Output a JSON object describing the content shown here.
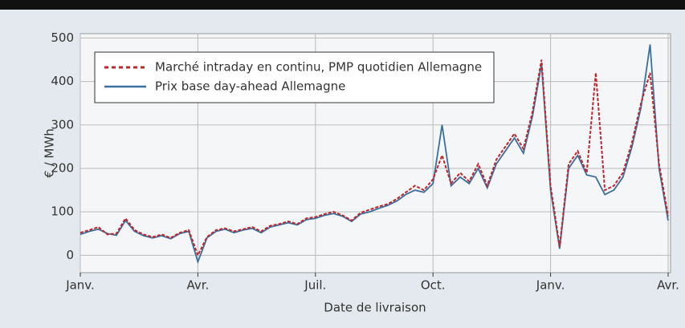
{
  "chart_data": {
    "type": "line",
    "xlabel": "Date de livraison",
    "ylabel": "€ / MWh",
    "categories": [
      "Janv.",
      null,
      null,
      null,
      null,
      null,
      null,
      null,
      null,
      null,
      null,
      null,
      null,
      "Avr.",
      null,
      null,
      null,
      null,
      null,
      null,
      null,
      null,
      null,
      null,
      null,
      null,
      "Juil.",
      null,
      null,
      null,
      null,
      null,
      null,
      null,
      null,
      null,
      null,
      null,
      null,
      "Oct.",
      null,
      null,
      null,
      null,
      null,
      null,
      null,
      null,
      null,
      null,
      null,
      null,
      "Janv.",
      null,
      null,
      null,
      null,
      null,
      null,
      null,
      null,
      null,
      null,
      null,
      null,
      "Avr."
    ],
    "series": [
      {
        "name": "Marché intraday en continu, PMP quotidien Allemagne",
        "color": "#c0262d",
        "dash": true,
        "values": [
          52,
          58,
          65,
          48,
          50,
          85,
          58,
          48,
          42,
          48,
          40,
          52,
          58,
          0,
          42,
          58,
          62,
          55,
          60,
          65,
          55,
          68,
          72,
          78,
          72,
          85,
          88,
          95,
          100,
          92,
          80,
          98,
          105,
          112,
          118,
          130,
          145,
          160,
          150,
          175,
          230,
          165,
          190,
          170,
          210,
          160,
          220,
          250,
          280,
          245,
          330,
          450,
          160,
          20,
          210,
          240,
          190,
          420,
          150,
          160,
          190,
          260,
          350,
          420,
          210,
          90
        ]
      },
      {
        "name": "Prix base day-ahead Allemagne",
        "color": "#3a6f9e",
        "dash": false,
        "values": [
          48,
          55,
          60,
          50,
          46,
          80,
          55,
          45,
          40,
          45,
          38,
          50,
          55,
          -15,
          40,
          55,
          60,
          52,
          58,
          62,
          52,
          65,
          70,
          75,
          70,
          82,
          85,
          92,
          96,
          90,
          78,
          95,
          100,
          108,
          115,
          125,
          140,
          150,
          145,
          165,
          300,
          160,
          180,
          165,
          200,
          155,
          210,
          240,
          270,
          235,
          320,
          440,
          150,
          15,
          200,
          230,
          185,
          180,
          140,
          150,
          180,
          250,
          340,
          485,
          200,
          80
        ]
      }
    ],
    "ylim": [
      -40,
      510
    ],
    "yticks": [
      0,
      100,
      200,
      300,
      400,
      500
    ],
    "grid": true,
    "legend": "upper left"
  }
}
